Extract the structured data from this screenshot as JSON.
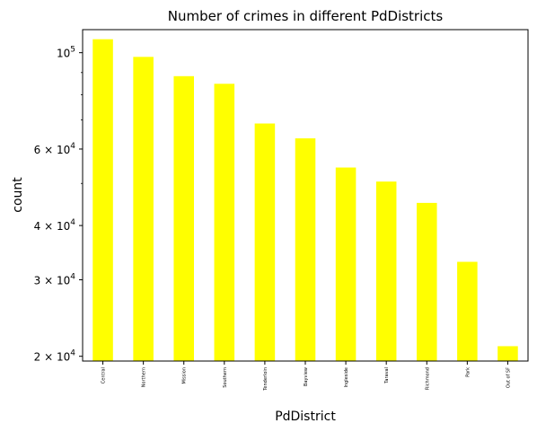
{
  "chart_data": {
    "type": "bar",
    "title": "Number of crimes in different PdDistricts",
    "xlabel": "PdDistrict",
    "ylabel": "count",
    "yscale": "log",
    "ylim": [
      19500,
      113000
    ],
    "categories": [
      "Central",
      "Northern",
      "Mission",
      "Southern",
      "Tenderloin",
      "Bayview",
      "Ingleside",
      "Taraval",
      "Richmond",
      "Park",
      "Out of SF"
    ],
    "values": [
      107400,
      97800,
      88300,
      84800,
      68700,
      63500,
      54400,
      50500,
      45100,
      33000,
      21100
    ],
    "bar_color": "#ffff00",
    "grid": false,
    "y_ticks": [
      {
        "value": 100000,
        "base": "10",
        "exp": "5"
      },
      {
        "value": 60000,
        "base": "6 × 10",
        "exp": "4"
      },
      {
        "value": 40000,
        "base": "4 × 10",
        "exp": "4"
      },
      {
        "value": 30000,
        "base": "3 × 10",
        "exp": "4"
      },
      {
        "value": 20000,
        "base": "2 × 10",
        "exp": "4"
      }
    ],
    "y_minor_ticks": [
      50000,
      70000,
      80000,
      90000
    ]
  }
}
